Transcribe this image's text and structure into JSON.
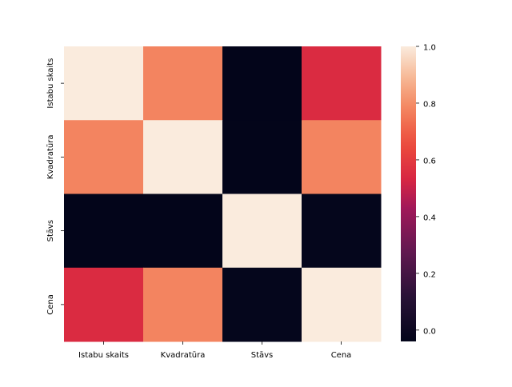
{
  "chart_data": {
    "type": "heatmap",
    "title": "",
    "xlabel": "",
    "ylabel": "",
    "x_categories": [
      "Istabu skaits",
      "Kvadratūra",
      "Stāvs",
      "Cena"
    ],
    "y_categories": [
      "Istabu skaits",
      "Kvadratūra",
      "Stāvs",
      "Cena"
    ],
    "values": [
      [
        1.0,
        0.78,
        -0.05,
        0.55
      ],
      [
        0.78,
        1.0,
        -0.04,
        0.78
      ],
      [
        -0.05,
        -0.04,
        1.0,
        -0.03
      ],
      [
        0.55,
        0.78,
        -0.03,
        1.0
      ]
    ],
    "colorbar": {
      "min": -0.04,
      "max": 1.0,
      "ticks": [
        1.0,
        0.8,
        0.6,
        0.4,
        0.2,
        0.0
      ],
      "tick_labels": [
        "1.0",
        "0.8",
        "0.6",
        "0.4",
        "0.2",
        "0.0"
      ],
      "colormap": "rocket"
    },
    "grid": false,
    "legend": "colorbar-right"
  }
}
